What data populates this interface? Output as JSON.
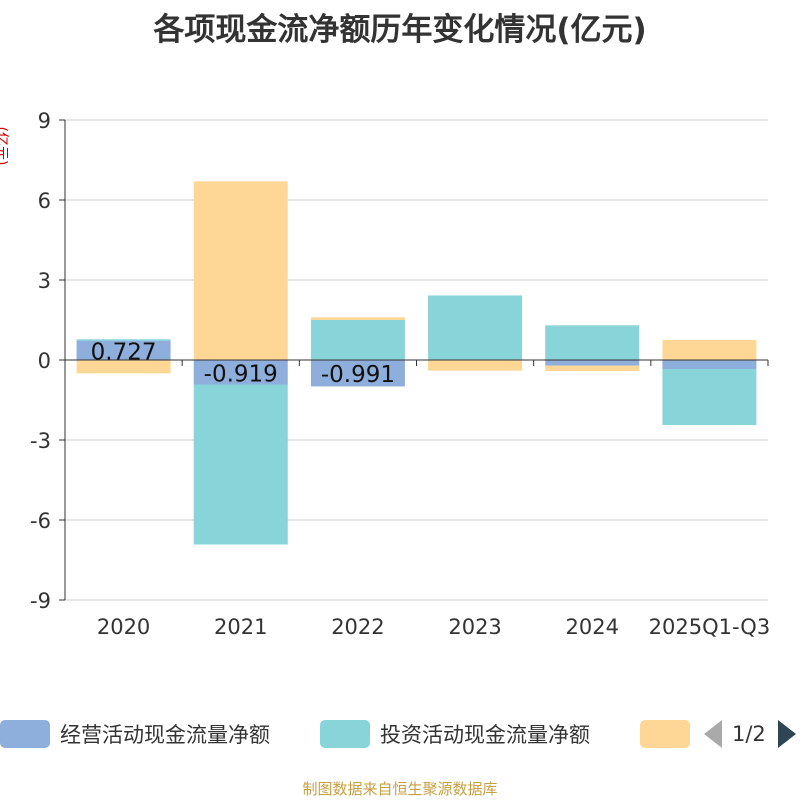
{
  "title": "各项现金流净额历年变化情况(亿元)",
  "yunit": "(亿元)",
  "source": "制图数据来自恒生聚源数据库",
  "colors": {
    "operating": "#8eaedb",
    "investing": "#88d4d8",
    "financing": "#fed797",
    "axis": "#333333",
    "grid": "#cccccc"
  },
  "legend": {
    "items": [
      "经营活动现金流量净额",
      "投资活动现金流量净额",
      ""
    ],
    "page": "1/2"
  },
  "chart_data": {
    "type": "bar",
    "stacked": true,
    "categories": [
      "2020",
      "2021",
      "2022",
      "2023",
      "2024",
      "2025Q1-Q3"
    ],
    "ylim": [
      -9,
      9
    ],
    "yticks": [
      "9",
      "6",
      "3",
      "0",
      "-3",
      "-6",
      "-9"
    ],
    "ytick_values": [
      9,
      6,
      3,
      0,
      -3,
      -6,
      -9
    ],
    "grid": true,
    "legend_position": "bottom",
    "series": [
      {
        "name": "经营活动现金流量净额",
        "values": [
          0.727,
          -0.919,
          -0.991,
          0.02,
          -0.211,
          -0.337
        ],
        "labels": [
          "0.727",
          "-0.919",
          "-0.991",
          "",
          "",
          ""
        ]
      },
      {
        "name": "投资活动现金流量净额",
        "values": [
          0.05,
          -6.0,
          1.5,
          2.4,
          1.3,
          -2.1
        ]
      },
      {
        "name": "",
        "values": [
          -0.5,
          6.7,
          0.1,
          -0.4,
          -0.2,
          0.75
        ]
      }
    ]
  }
}
